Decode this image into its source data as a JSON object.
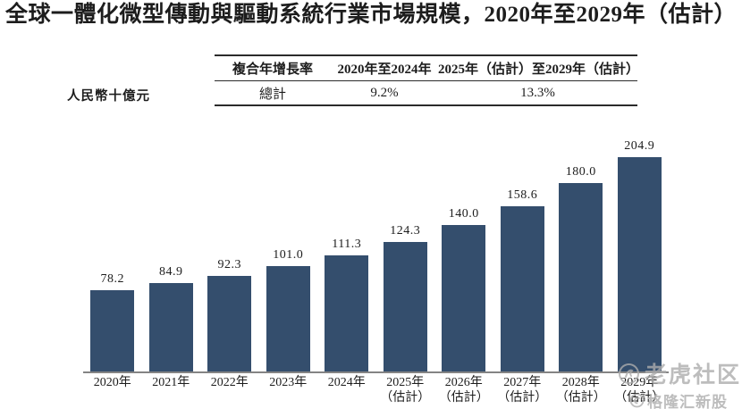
{
  "title": {
    "main": "全球一體化微型傳動與驅動系統行業市場規模，",
    "period": "2020年至2029年（估計）"
  },
  "unit_label": "人民幣十億元",
  "cagr_table": {
    "col_headers": [
      "複合年增長率",
      "2020年至2024年",
      "2025年（估計）至2029年（估計）"
    ],
    "row_label": "總計",
    "values": [
      "9.2%",
      "13.3%"
    ]
  },
  "chart_data": {
    "type": "bar",
    "title": "全球一體化微型傳動與驅動系統行業市場規模，2020年至2029年（估計）",
    "unit": "人民幣十億元",
    "categories": [
      "2020年",
      "2021年",
      "2022年",
      "2023年",
      "2024年",
      "2025年",
      "2026年",
      "2027年",
      "2028年",
      "2029年"
    ],
    "category_suffixes": [
      "",
      "",
      "",
      "",
      "",
      "（估計）",
      "（估計）",
      "（估計）",
      "（估計）",
      "（估計）"
    ],
    "values": [
      78.2,
      84.9,
      92.3,
      101.0,
      111.3,
      124.3,
      140.0,
      158.6,
      180.0,
      204.9
    ],
    "value_labels": [
      "78.2",
      "84.9",
      "92.3",
      "101.0",
      "111.3",
      "124.3",
      "140.0",
      "158.6",
      "180.0",
      "204.9"
    ],
    "bar_color": "#344E6D",
    "ylim": [
      0,
      235
    ],
    "grid": "off",
    "legend": "none",
    "cagr_2020_2024": "9.2%",
    "cagr_2025e_2029e": "13.3%"
  },
  "watermarks": {
    "tiger": "老虎社区",
    "gelonghui": "格隆汇新股"
  }
}
